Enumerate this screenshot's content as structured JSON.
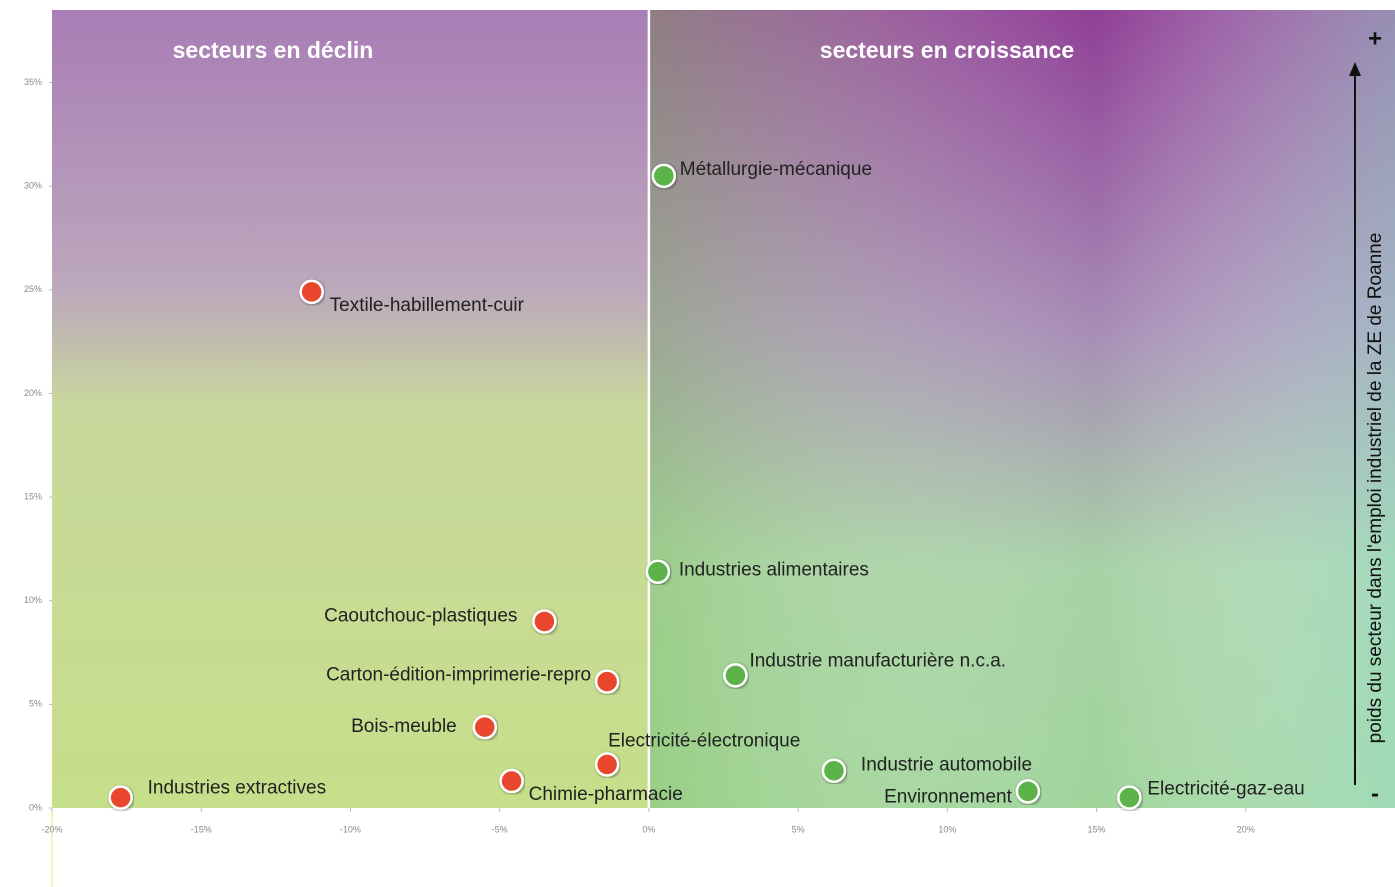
{
  "chart_data": {
    "type": "scatter",
    "annotations": [
      "secteurs en déclin",
      "secteurs en croissance",
      "+",
      "-"
    ],
    "ylabel": "poids du secteur dans l'emploi industriel de la ZE de Roanne",
    "labels": [
      "Métallurgie-mécanique",
      "Textile-habillement-cuir",
      "Industries alimentaires",
      "Caoutchouc-plastiques",
      "Carton-édition-imprimerie-repro",
      "Industrie manufacturière n.c.a.",
      "Bois-meuble",
      "Electricité-électronique",
      "Chimie-pharmacie",
      "Industries extractives",
      "Industrie automobile",
      "Environnement",
      "Electricité-gaz-eau"
    ],
    "x": [
      0.5,
      -11.3,
      0.3,
      -3.5,
      -1.4,
      2.9,
      -5.5,
      -1.4,
      -4.6,
      -17.7,
      6.2,
      12.7,
      16.1
    ],
    "values": [
      30.5,
      24.9,
      11.4,
      9.0,
      6.1,
      6.4,
      3.9,
      2.1,
      1.3,
      0.5,
      1.8,
      0.8,
      0.5
    ],
    "colors": [
      "#5cb34a",
      "#e8472d",
      "#5cb34a",
      "#e8472d",
      "#e8472d",
      "#5cb34a",
      "#e8472d",
      "#e8472d",
      "#e8472d",
      "#e8472d",
      "#5cb34a",
      "#5cb34a",
      "#5cb34a"
    ],
    "xlim": [
      -20,
      25
    ],
    "ylim": [
      0,
      38.5
    ],
    "xticks": [
      {
        "value": -20,
        "label": "-20%"
      },
      {
        "value": -15,
        "label": "-15%"
      },
      {
        "value": -10,
        "label": "-10%"
      },
      {
        "value": -5,
        "label": "-5%"
      },
      {
        "value": 0,
        "label": "0%"
      },
      {
        "value": 5,
        "label": "5%"
      },
      {
        "value": 10,
        "label": "10%"
      },
      {
        "value": 15,
        "label": "15%"
      },
      {
        "value": 20,
        "label": "20%"
      }
    ],
    "yticks": [
      {
        "value": 0,
        "label": "0%"
      },
      {
        "value": 5,
        "label": "5%"
      },
      {
        "value": 10,
        "label": "10%"
      },
      {
        "value": 15,
        "label": "15%"
      },
      {
        "value": 20,
        "label": "20%"
      },
      {
        "value": 25,
        "label": "25%"
      },
      {
        "value": 30,
        "label": "30%"
      },
      {
        "value": 35,
        "label": "35%"
      }
    ]
  }
}
